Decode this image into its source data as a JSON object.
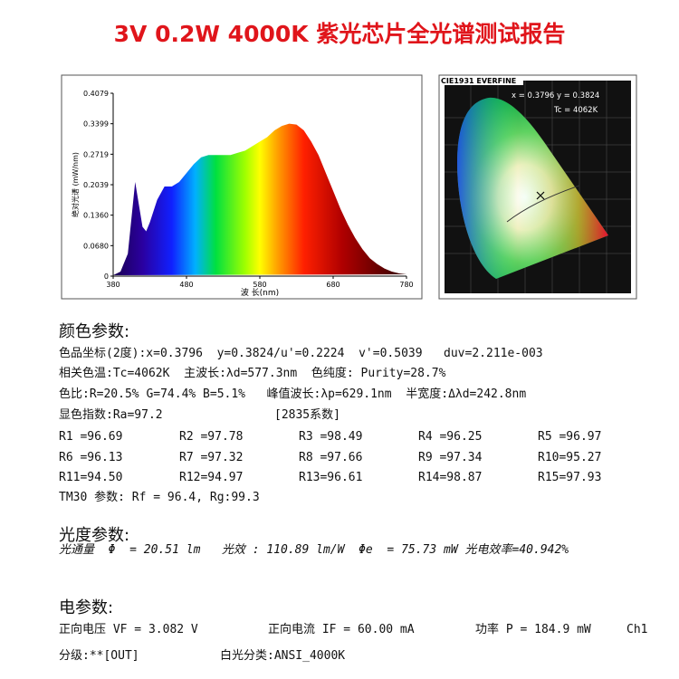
{
  "title": "3V 0.2W 4000K 紫光芯片全光谱测试报告",
  "chart_data": {
    "type": "line",
    "xlabel": "波 长(nm)",
    "ylabel": "绝对光谱 (mW/nm)",
    "x": [
      380,
      390,
      400,
      405,
      410,
      415,
      420,
      425,
      430,
      440,
      450,
      460,
      470,
      480,
      490,
      500,
      510,
      520,
      530,
      540,
      550,
      560,
      570,
      580,
      590,
      600,
      610,
      620,
      630,
      640,
      650,
      660,
      670,
      680,
      690,
      700,
      710,
      720,
      730,
      740,
      750,
      760,
      770,
      780
    ],
    "values": [
      0.002,
      0.01,
      0.05,
      0.13,
      0.21,
      0.16,
      0.11,
      0.1,
      0.12,
      0.17,
      0.2,
      0.2,
      0.21,
      0.23,
      0.25,
      0.265,
      0.27,
      0.27,
      0.27,
      0.27,
      0.275,
      0.28,
      0.29,
      0.3,
      0.31,
      0.325,
      0.335,
      0.34,
      0.338,
      0.325,
      0.3,
      0.27,
      0.23,
      0.19,
      0.15,
      0.115,
      0.085,
      0.06,
      0.04,
      0.027,
      0.017,
      0.01,
      0.006,
      0.004
    ],
    "xlim": [
      380,
      780
    ],
    "ylim": [
      0,
      0.4079
    ],
    "xticks": [
      380,
      480,
      580,
      680,
      780
    ],
    "yticks": [
      0,
      {
        "value": 0.068,
        "label": "0.0680"
      },
      {
        "value": 0.136,
        "label": "0.1360"
      },
      0.2039,
      0.2719,
      0.3399,
      0.4079
    ]
  },
  "cie": {
    "title": "CIE1931 EVERFINE",
    "coords": "x = 0.3796 y = 0.3824",
    "tc": "Tc = 4062K"
  },
  "color": {
    "heading": "颜色参数:",
    "lines": [
      "色品坐标(2度):x=0.3796  y=0.3824/u'=0.2224  v'=0.5039   duv=2.211e-003",
      "相关色温:Tc=4062K  主波长:λd=577.3nm  色纯度: Purity=28.7%",
      "色比:R=20.5% G=74.4% B=5.1%   峰值波长:λp=629.1nm  半宽度:Δλd=242.8nm",
      "显色指数:Ra=97.2"
    ],
    "series_note": "[2835系数]",
    "render": [
      [
        "R1 =96.69",
        "R2 =97.78",
        "R3 =98.49",
        "R4 =96.25",
        "R5 =96.97"
      ],
      [
        "R6 =96.13",
        "R7 =97.32",
        "R8 =97.66",
        "R9 =97.34",
        "R10=95.27"
      ],
      [
        "R11=94.50",
        "R12=94.97",
        "R13=96.61",
        "R14=98.87",
        "R15=97.93"
      ]
    ],
    "tm30": "TM30 参数: Rf = 96.4, Rg:99.3"
  },
  "photometric": {
    "heading": "光度参数:",
    "line": "光通量  Φ  = 20.51 lm   光效 : 110.89 lm/W  Φe  = 75.73 mW 光电效率=40.942%"
  },
  "electrical": {
    "heading": "电参数:",
    "row1": [
      "正向电压 VF = 3.082 V",
      "正向电流 IF = 60.00 mA",
      "功率 P = 184.9 mW",
      "Ch1"
    ],
    "row2": [
      "分级:**[OUT]",
      "白光分类:ANSI_4000K"
    ]
  }
}
